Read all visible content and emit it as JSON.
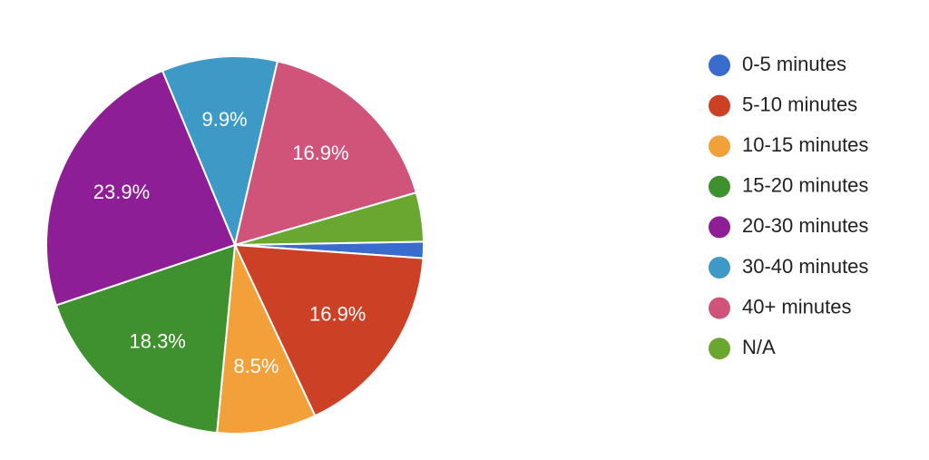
{
  "chart_data": {
    "type": "pie",
    "categories": [
      "0-5 minutes",
      "5-10 minutes",
      "10-15 minutes",
      "15-20 minutes",
      "20-30 minutes",
      "30-40 minutes",
      "40+ minutes",
      "N/A"
    ],
    "values": [
      1.4,
      16.9,
      8.5,
      18.3,
      23.9,
      9.9,
      16.9,
      4.2
    ],
    "value_labels": [
      null,
      "16.9%",
      "8.5%",
      "18.3%",
      "23.9%",
      "9.9%",
      "16.9%",
      null
    ],
    "colors": [
      "#3a6ccd",
      "#cc4125",
      "#f2a13a",
      "#3f9130",
      "#8e1e96",
      "#3d9ac6",
      "#d0537a",
      "#6aa731"
    ],
    "legend": "right"
  }
}
